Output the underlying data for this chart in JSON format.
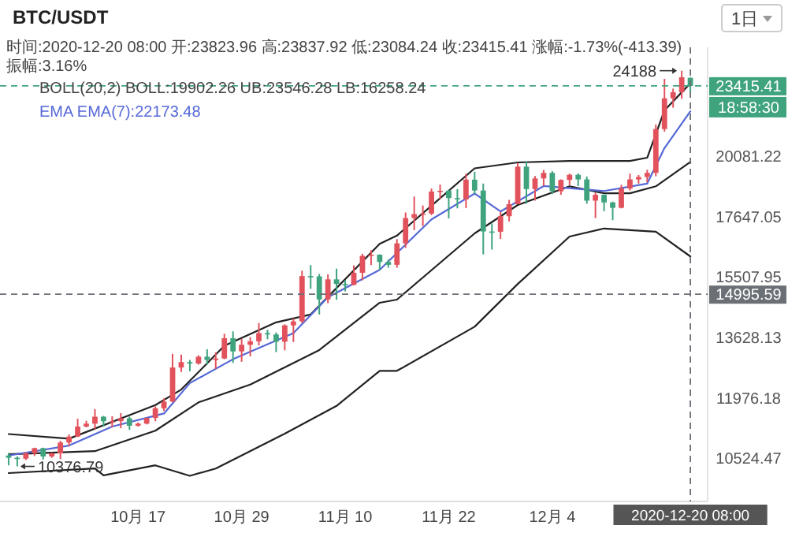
{
  "chart_data": {
    "type": "candlestick",
    "title": "BTC/USDT",
    "subtitle": "时间:2020-12-20 08:00  开:23823.96  高:23837.92  低:23084.24  收:23415.41  涨幅:-1.73%(-413.39)  振幅:3.16%",
    "x": [
      "2020-10-02",
      "2020-10-03",
      "2020-10-04",
      "2020-10-05",
      "2020-10-06",
      "2020-10-07",
      "2020-10-08",
      "2020-10-09",
      "2020-10-10",
      "2020-10-11",
      "2020-10-12",
      "2020-10-13",
      "2020-10-14",
      "2020-10-15",
      "2020-10-16",
      "2020-10-17",
      "2020-10-18",
      "2020-10-19",
      "2020-10-20",
      "2020-10-21",
      "2020-10-22",
      "2020-10-23",
      "2020-10-24",
      "2020-10-25",
      "2020-10-26",
      "2020-10-27",
      "2020-10-28",
      "2020-10-29",
      "2020-10-30",
      "2020-10-31",
      "2020-11-01",
      "2020-11-02",
      "2020-11-03",
      "2020-11-04",
      "2020-11-05",
      "2020-11-06",
      "2020-11-07",
      "2020-11-08",
      "2020-11-09",
      "2020-11-10",
      "2020-11-11",
      "2020-11-12",
      "2020-11-13",
      "2020-11-14",
      "2020-11-15",
      "2020-11-16",
      "2020-11-17",
      "2020-11-18",
      "2020-11-19",
      "2020-11-20",
      "2020-11-21",
      "2020-11-22",
      "2020-11-23",
      "2020-11-24",
      "2020-11-25",
      "2020-11-26",
      "2020-11-27",
      "2020-11-28",
      "2020-11-29",
      "2020-11-30",
      "2020-12-01",
      "2020-12-02",
      "2020-12-03",
      "2020-12-04",
      "2020-12-05",
      "2020-12-06",
      "2020-12-07",
      "2020-12-08",
      "2020-12-09",
      "2020-12-10",
      "2020-12-11",
      "2020-12-12",
      "2020-12-13",
      "2020-12-14",
      "2020-12-15",
      "2020-12-16",
      "2020-12-17",
      "2020-12-18",
      "2020-12-19",
      "2020-12-20"
    ],
    "ohlc": [
      [
        10620,
        10680,
        10400,
        10570
      ],
      [
        10570,
        10600,
        10376.79,
        10550
      ],
      [
        10550,
        10700,
        10520,
        10670
      ],
      [
        10670,
        10800,
        10610,
        10790
      ],
      [
        10790,
        10800,
        10530,
        10600
      ],
      [
        10600,
        10690,
        10570,
        10670
      ],
      [
        10670,
        10960,
        10540,
        10920
      ],
      [
        10920,
        11110,
        10830,
        11060
      ],
      [
        11060,
        11490,
        11050,
        11300
      ],
      [
        11300,
        11440,
        11280,
        11370
      ],
      [
        11370,
        11730,
        11230,
        11540
      ],
      [
        11540,
        11560,
        11300,
        11430
      ],
      [
        11430,
        11550,
        11280,
        11430
      ],
      [
        11430,
        11630,
        11260,
        11500
      ],
      [
        11500,
        11540,
        11220,
        11320
      ],
      [
        11320,
        11400,
        11300,
        11370
      ],
      [
        11370,
        11520,
        11350,
        11510
      ],
      [
        11510,
        11800,
        11430,
        11750
      ],
      [
        11750,
        12000,
        11680,
        11920
      ],
      [
        11920,
        13200,
        11900,
        12820
      ],
      [
        12820,
        13180,
        12700,
        12970
      ],
      [
        12970,
        13030,
        12720,
        12930
      ],
      [
        12930,
        13160,
        12900,
        13120
      ],
      [
        13120,
        13330,
        12900,
        13030
      ],
      [
        13030,
        13240,
        12780,
        13070
      ],
      [
        13070,
        13780,
        13050,
        13650
      ],
      [
        13650,
        13850,
        12950,
        13270
      ],
      [
        13270,
        13630,
        12980,
        13460
      ],
      [
        13460,
        13680,
        13130,
        13560
      ],
      [
        13560,
        14100,
        13440,
        13800
      ],
      [
        13800,
        13900,
        13620,
        13760
      ],
      [
        13760,
        13820,
        13250,
        13550
      ],
      [
        13550,
        14060,
        13300,
        14030
      ],
      [
        14030,
        14240,
        13540,
        14150
      ],
      [
        14150,
        15770,
        14100,
        15590
      ],
      [
        15590,
        15960,
        15170,
        15580
      ],
      [
        15580,
        15660,
        14360,
        14830
      ],
      [
        14830,
        15650,
        14710,
        15480
      ],
      [
        15480,
        15840,
        14820,
        15330
      ],
      [
        15330,
        15460,
        15090,
        15300
      ],
      [
        15300,
        15950,
        15280,
        15700
      ],
      [
        15700,
        16350,
        15450,
        16280
      ],
      [
        16280,
        16480,
        15960,
        16320
      ],
      [
        16320,
        16330,
        15790,
        16070
      ],
      [
        16070,
        16150,
        15870,
        15970
      ],
      [
        15970,
        16870,
        15870,
        16720
      ],
      [
        16720,
        17860,
        16560,
        17650
      ],
      [
        17650,
        18480,
        17200,
        17800
      ],
      [
        17800,
        18130,
        17350,
        17820
      ],
      [
        17820,
        18800,
        17760,
        18680
      ],
      [
        18680,
        18960,
        18390,
        18710
      ],
      [
        18710,
        18750,
        17640,
        18420
      ],
      [
        18420,
        18780,
        18020,
        18370
      ],
      [
        18370,
        19400,
        18030,
        19160
      ],
      [
        19160,
        19490,
        18580,
        18720
      ],
      [
        18720,
        19000,
        16330,
        17150
      ],
      [
        17150,
        17450,
        16500,
        17140
      ],
      [
        17140,
        17890,
        16880,
        17720
      ],
      [
        17720,
        18350,
        17520,
        18180
      ],
      [
        18180,
        19860,
        18180,
        19700
      ],
      [
        19700,
        19920,
        18200,
        18780
      ],
      [
        18780,
        19310,
        18320,
        19210
      ],
      [
        19210,
        19560,
        18900,
        19440
      ],
      [
        19440,
        19510,
        18580,
        18690
      ],
      [
        18690,
        19170,
        18550,
        19150
      ],
      [
        19150,
        19410,
        18940,
        19360
      ],
      [
        19360,
        19420,
        18900,
        19170
      ],
      [
        19170,
        19290,
        18200,
        18320
      ],
      [
        18320,
        18640,
        17650,
        18550
      ],
      [
        18550,
        18560,
        17910,
        18250
      ],
      [
        18250,
        18280,
        17570,
        18040
      ],
      [
        18040,
        18950,
        18020,
        18800
      ],
      [
        18800,
        19410,
        18720,
        19170
      ],
      [
        19170,
        19350,
        19000,
        19270
      ],
      [
        19270,
        19570,
        19050,
        19440
      ],
      [
        19440,
        21560,
        19300,
        21350
      ],
      [
        21350,
        23770,
        21230,
        22800
      ],
      [
        22800,
        23280,
        22350,
        23100
      ],
      [
        23100,
        24188,
        22780,
        23850
      ],
      [
        23823.96,
        23837.92,
        23084.24,
        23415.41
      ]
    ],
    "colors": [
      "#3fa37e",
      "#3fa37e",
      "#e2525c",
      "#e2525c",
      "#3fa37e",
      "#e2525c",
      "#e2525c",
      "#e2525c",
      "#e2525c",
      "#e2525c",
      "#e2525c",
      "#3fa37e",
      "#e2525c",
      "#e2525c",
      "#3fa37e",
      "#e2525c",
      "#e2525c",
      "#e2525c",
      "#e2525c",
      "#e2525c",
      "#e2525c",
      "#3fa37e",
      "#e2525c",
      "#3fa37e",
      "#e2525c",
      "#e2525c",
      "#3fa37e",
      "#e2525c",
      "#e2525c",
      "#e2525c",
      "#3fa37e",
      "#3fa37e",
      "#e2525c",
      "#e2525c",
      "#e2525c",
      "#3fa37e",
      "#3fa37e",
      "#e2525c",
      "#3fa37e",
      "#3fa37e",
      "#e2525c",
      "#e2525c",
      "#e2525c",
      "#3fa37e",
      "#3fa37e",
      "#e2525c",
      "#e2525c",
      "#e2525c",
      "#e2525c",
      "#e2525c",
      "#e2525c",
      "#3fa37e",
      "#3fa37e",
      "#e2525c",
      "#3fa37e",
      "#3fa37e",
      "#3fa37e",
      "#e2525c",
      "#e2525c",
      "#e2525c",
      "#3fa37e",
      "#e2525c",
      "#e2525c",
      "#3fa37e",
      "#e2525c",
      "#e2525c",
      "#3fa37e",
      "#3fa37e",
      "#e2525c",
      "#3fa37e",
      "#3fa37e",
      "#e2525c",
      "#e2525c",
      "#e2525c",
      "#e2525c",
      "#e2525c",
      "#e2525c",
      "#e2525c",
      "#e2525c",
      "#3fa37e"
    ],
    "series": [
      {
        "type": "line",
        "color": "#222222",
        "x": [
          "2020-10-02",
          "2020-10-09",
          "2020-10-19",
          "2020-10-22",
          "2020-10-27",
          "2020-11-02",
          "2020-11-06",
          "2020-11-14",
          "2020-11-16",
          "2020-11-25",
          "2020-11-30",
          "2020-12-06",
          "2020-12-13",
          "2020-12-15",
          "2020-12-17",
          "2020-12-20"
        ],
        "values": [
          11120,
          11010,
          11830,
          12230,
          13430,
          14120,
          14360,
          16700,
          17000,
          19630,
          19880,
          19940,
          19940,
          20080,
          22220,
          23546.28
        ]
      },
      {
        "type": "line",
        "color": "#222222",
        "x": [
          "2020-10-02",
          "2020-10-12",
          "2020-10-19",
          "2020-10-24",
          "2020-10-30",
          "2020-11-07",
          "2020-11-14",
          "2020-11-16",
          "2020-11-25",
          "2020-11-30",
          "2020-12-06",
          "2020-12-10",
          "2020-12-13",
          "2020-12-16",
          "2020-12-20"
        ],
        "values": [
          10650,
          10720,
          11200,
          11900,
          12360,
          13310,
          14725,
          14825,
          17080,
          18150,
          18890,
          18610,
          18610,
          18890,
          19902.26
        ]
      },
      {
        "type": "line",
        "color": "#222222",
        "x": [
          "2020-10-02",
          "2020-10-12",
          "2020-10-13",
          "2020-10-19",
          "2020-10-23",
          "2020-10-26",
          "2020-11-03",
          "2020-11-09",
          "2020-11-14",
          "2020-11-16",
          "2020-11-25",
          "2020-11-30",
          "2020-12-06",
          "2020-12-10",
          "2020-12-16",
          "2020-12-20"
        ],
        "values": [
          10230,
          10330,
          10180,
          10400,
          10170,
          10330,
          11130,
          11810,
          12730,
          12730,
          13990,
          15330,
          16965,
          17260,
          17140,
          16258.24
        ]
      },
      {
        "type": "line",
        "color": "#5568d6",
        "x": [
          "2020-10-02",
          "2020-10-09",
          "2020-10-14",
          "2020-10-20",
          "2020-10-23",
          "2020-10-28",
          "2020-11-04",
          "2020-11-08",
          "2020-11-14",
          "2020-11-20",
          "2020-11-25",
          "2020-11-28",
          "2020-12-03",
          "2020-12-10",
          "2020-12-15",
          "2020-12-17",
          "2020-12-20"
        ],
        "values": [
          10620,
          10850,
          11300,
          11620,
          12400,
          13050,
          13800,
          14900,
          15800,
          17600,
          18600,
          17900,
          18900,
          18700,
          19000,
          20500,
          22173.48
        ]
      }
    ],
    "log": "y",
    "ylim": [
      9627,
      25429
    ],
    "yticks": [
      10524.47,
      11976.18,
      13628.13,
      15507.95,
      17647.05,
      20081.22
    ],
    "xlim": [
      "2020-10-01",
      "2020-12-22"
    ],
    "xticks": [
      {
        "value": "2020-10-17",
        "label": "10月 17"
      },
      {
        "value": "2020-10-29",
        "label": "10月 29"
      },
      {
        "value": "2020-11-10",
        "label": "11月 10"
      },
      {
        "value": "2020-11-22",
        "label": "11月 22"
      },
      {
        "value": "2020-12-04",
        "label": "12月 4"
      }
    ],
    "ref_lines": [
      {
        "axis": "y",
        "value": 23415.41,
        "label": "23415.41",
        "color": "#3fa37e",
        "line_style": "dashed"
      },
      {
        "axis": "y",
        "value": 14995.59,
        "label": "14995.59",
        "color": "#6b6f76",
        "line_style": "dashed"
      },
      {
        "axis": "x",
        "value": "2020-12-20",
        "label": "2020-12-20 08:00",
        "color": "#6b6f76",
        "line_style": "dashed"
      }
    ],
    "annotations": [
      "BOLL(20,2)  BOLL:19902.26  UB:23546.28  LB:16258.24",
      "EMA  EMA(7):22173.48",
      "18:58:30",
      "1日",
      {
        "text": "24188",
        "x": "2020-12-19",
        "y": 24188
      },
      {
        "text": "10376.79",
        "x": "2020-10-03",
        "y": 10376.79
      }
    ]
  }
}
